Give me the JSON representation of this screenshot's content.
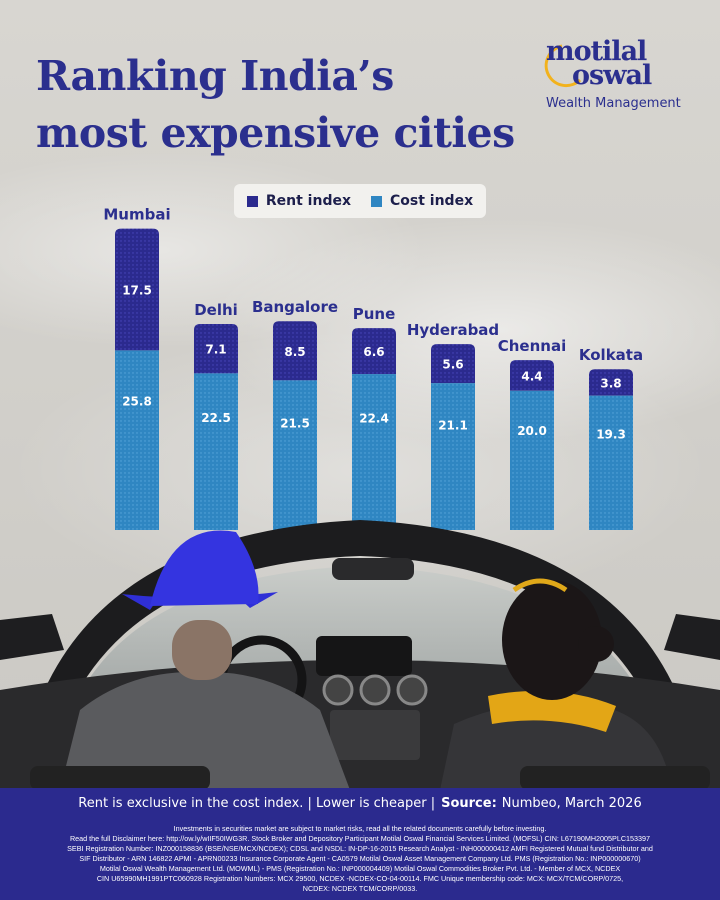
{
  "title": {
    "line1": "Ranking India’s",
    "line2": "most expensive cities"
  },
  "logo": {
    "line1": "motilal",
    "line2": "oswal",
    "sub": "Wealth Management"
  },
  "colors": {
    "title": "#2b2f8e",
    "rent": "#2b2a8e",
    "cost": "#2f86c2"
  },
  "chart_data": {
    "type": "bar",
    "stacked": true,
    "categories": [
      "Mumbai",
      "Delhi",
      "Bangalore",
      "Pune",
      "Hyderabad",
      "Chennai",
      "Kolkata"
    ],
    "series": [
      {
        "name": "Rent index",
        "values": [
          17.5,
          7.1,
          8.5,
          6.6,
          5.6,
          4.4,
          3.8
        ]
      },
      {
        "name": "Cost index",
        "values": [
          25.8,
          22.5,
          21.5,
          22.4,
          21.1,
          20.0,
          19.3
        ]
      }
    ],
    "data_labels": {
      "Rent index": [
        "17.5",
        "7.1",
        "8.5",
        "6.6",
        "5.6",
        "4.4",
        "3.8"
      ],
      "Cost index": [
        "25.8",
        "22.5",
        "21.5",
        "22.4",
        "21.1",
        "20.0",
        "19.3"
      ]
    },
    "legend": [
      "Rent index",
      "Cost index"
    ],
    "legend_position": "top-center",
    "grid": false,
    "xlabel": "",
    "ylabel": ""
  },
  "footer": {
    "note": "Rent is exclusive in the cost index. | Lower is cheaper |",
    "source_label": "Source:",
    "source": "Numbeo, March 2026"
  },
  "disclaimer": [
    "Investments in securities market are subject to market risks, read all the related documents carefully before investing.",
    "Read the full Disclaimer here: http://ow.ly/wIIF50IWG3R. Stock Broker and Depository Participant Motilal Oswal Financial Services Limited. (MOFSL) CIN: L67190MH2005PLC153397",
    "SEBI Registration Number: INZ000158836 (BSE/NSE/MCX/NCDEX); CDSL and NSDL: IN-DP-16-2015 Research Analyst - INH000000412 AMFI Registered Mutual fund Distributor and",
    "SIF Distributor - ARN 146822 APMI - APRN00233 Insurance Corporate Agent - CA0579 Motilal Oswal Asset Management Company Ltd. PMS (Registration No.: INP000000670)",
    "Motilal Oswal Wealth Management Ltd. (MOWML) - PMS (Registration No.: INP000004409) Motilal Oswal Commodities Broker Pvt. Ltd. - Member of MCX, NCDEX",
    "CIN U65990MH1991PTC060928 Registration Numbers: MCX 29500, NCDEX -NCDEX-CO-04-00114. FMC Unique membership code: MCX: MCX/TCM/CORP/0725,",
    "NCDEX: NCDEX TCM/CORP/0033."
  ]
}
